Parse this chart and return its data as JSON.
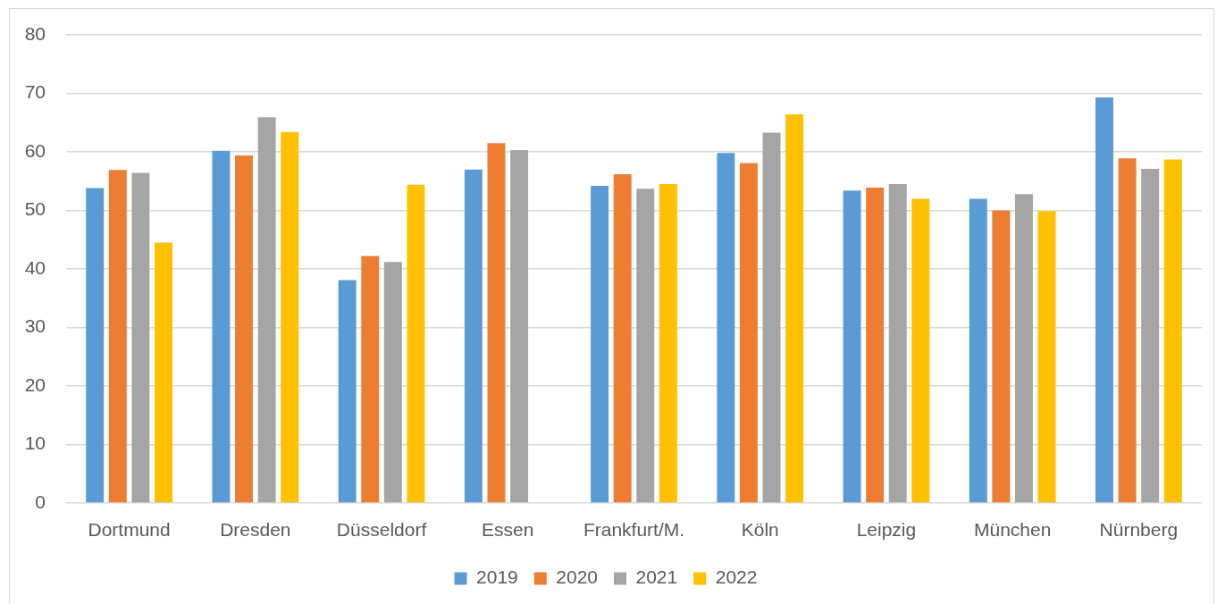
{
  "chart_data": {
    "type": "bar",
    "categories": [
      "Dortmund",
      "Dresden",
      "Düsseldorf",
      "Essen",
      "Frankfurt/M.",
      "Köln",
      "Leipzig",
      "München",
      "Nürnberg"
    ],
    "series": [
      {
        "name": "2019",
        "color": "#5b9bd5",
        "values": [
          53.8,
          60.2,
          38.1,
          57.0,
          54.2,
          59.8,
          53.4,
          52.0,
          69.3
        ]
      },
      {
        "name": "2020",
        "color": "#ed7d31",
        "values": [
          56.9,
          59.4,
          42.2,
          61.5,
          56.2,
          58.1,
          53.9,
          50.0,
          58.9
        ]
      },
      {
        "name": "2021",
        "color": "#a5a5a5",
        "values": [
          56.4,
          65.9,
          41.2,
          60.3,
          53.7,
          63.3,
          54.5,
          52.8,
          57.1
        ]
      },
      {
        "name": "2022",
        "color": "#ffc000",
        "values": [
          44.5,
          63.4,
          54.4,
          null,
          54.5,
          66.4,
          52.0,
          49.9,
          58.7
        ]
      }
    ],
    "ylim": [
      0,
      80
    ],
    "yticks": [
      0,
      10,
      20,
      30,
      40,
      50,
      60,
      70,
      80
    ],
    "grid": "y",
    "legend": "bottom"
  }
}
